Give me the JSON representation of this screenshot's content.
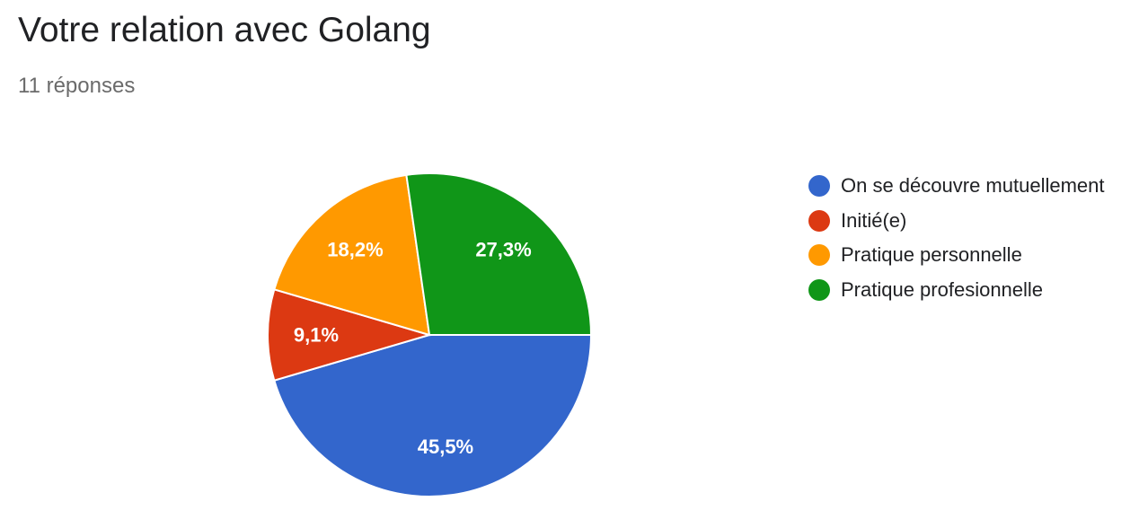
{
  "header": {
    "title": "Votre relation avec Golang",
    "responses": "11 réponses"
  },
  "chart_data": {
    "type": "pie",
    "title": "Votre relation avec Golang",
    "categories": [
      "On se découvre mutuellement",
      "Initié(e)",
      "Pratique personnelle",
      "Pratique profesionnelle"
    ],
    "values": [
      45.5,
      9.1,
      18.2,
      27.3
    ],
    "labels": [
      "45,5%",
      "9,1%",
      "18,2%",
      "27,3%"
    ],
    "colors": [
      "#3366cc",
      "#dc3912",
      "#ff9900",
      "#109618"
    ],
    "legend_position": "right"
  }
}
